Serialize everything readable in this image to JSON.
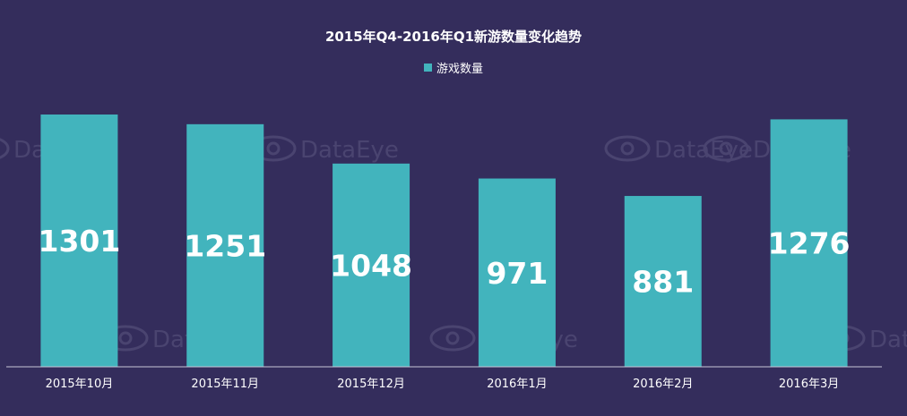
{
  "chart_data": {
    "type": "bar",
    "title": "2015年Q4-2016年Q1新游数量变化趋势",
    "categories": [
      "2015年10月",
      "2015年11月",
      "2015年12月",
      "2016年1月",
      "2016年2月",
      "2016年3月"
    ],
    "series": [
      {
        "name": "游戏数量",
        "values": [
          1301,
          1251,
          1048,
          971,
          881,
          1276
        ]
      }
    ],
    "legend": "top-center",
    "grid": false,
    "ylim": [
      0,
      1301
    ]
  },
  "watermark": "DataEye",
  "colors": {
    "background": "#342d5c",
    "bar": "#42b4bd",
    "text": "#ffffff",
    "axis": "#c8c6d6",
    "watermark": "#4a4470"
  }
}
